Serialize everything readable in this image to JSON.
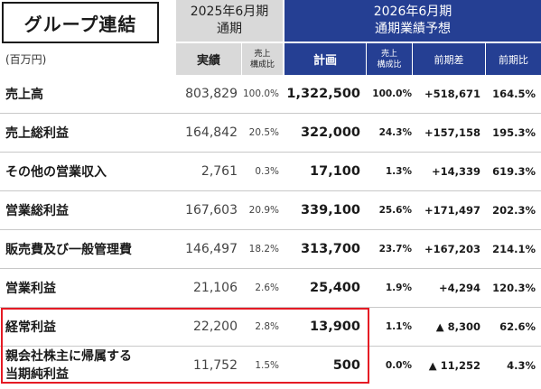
{
  "title": "グループ連結",
  "unit": "(百万円)",
  "fy2025": {
    "line1": "2025年6月期",
    "line2": "通期",
    "actual": "実績",
    "ratio": "売上\n構成比"
  },
  "fy2026": {
    "line1": "2026年6月期",
    "line2": "通期業績予想",
    "plan": "計画",
    "ratio": "売上\n構成比",
    "diff": "前期差",
    "yoy": "前期比"
  },
  "rows": [
    {
      "label": "売上高",
      "actual": "803,829",
      "actual_ratio": "100.0%",
      "plan": "1,322,500",
      "plan_ratio": "100.0%",
      "diff": "+518,671",
      "yoy": "164.5%"
    },
    {
      "label": "売上総利益",
      "actual": "164,842",
      "actual_ratio": "20.5%",
      "plan": "322,000",
      "plan_ratio": "24.3%",
      "diff": "+157,158",
      "yoy": "195.3%"
    },
    {
      "label": "その他の営業収入",
      "actual": "2,761",
      "actual_ratio": "0.3%",
      "plan": "17,100",
      "plan_ratio": "1.3%",
      "diff": "+14,339",
      "yoy": "619.3%"
    },
    {
      "label": "営業総利益",
      "actual": "167,603",
      "actual_ratio": "20.9%",
      "plan": "339,100",
      "plan_ratio": "25.6%",
      "diff": "+171,497",
      "yoy": "202.3%"
    },
    {
      "label": "販売費及び一般管理費",
      "actual": "146,497",
      "actual_ratio": "18.2%",
      "plan": "313,700",
      "plan_ratio": "23.7%",
      "diff": "+167,203",
      "yoy": "214.1%"
    },
    {
      "label": "営業利益",
      "actual": "21,106",
      "actual_ratio": "2.6%",
      "plan": "25,400",
      "plan_ratio": "1.9%",
      "diff": "+4,294",
      "yoy": "120.3%"
    },
    {
      "label": "経常利益",
      "actual": "22,200",
      "actual_ratio": "2.8%",
      "plan": "13,900",
      "plan_ratio": "1.1%",
      "diff": "▲ 8,300",
      "yoy": "62.6%"
    },
    {
      "label_line1": "親会社株主に帰属する",
      "label_line2": "当期純利益",
      "actual": "11,752",
      "actual_ratio": "1.5%",
      "plan": "500",
      "plan_ratio": "0.0%",
      "diff": "▲ 11,252",
      "yoy": "4.3%"
    }
  ],
  "colors": {
    "header_blue": "#253f93",
    "header_gray": "#d9d9d9",
    "highlight_red": "#e51a24"
  }
}
